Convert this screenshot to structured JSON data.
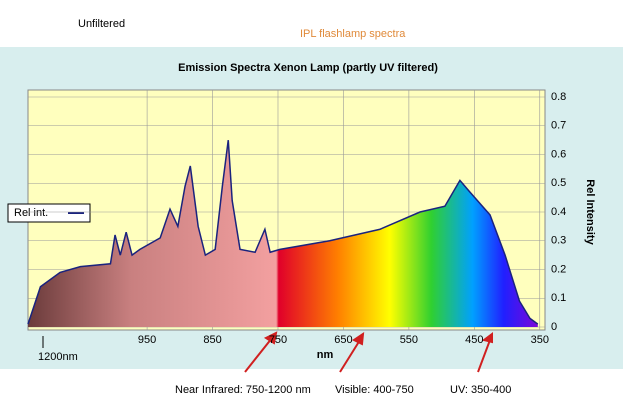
{
  "header": {
    "left": "Unfiltered",
    "right": "IPL flashlamp spectra"
  },
  "chart_data": {
    "type": "area",
    "title": "Emission Spectra Xenon Lamp (partly UV filtered)",
    "x_label": "nm",
    "y_label": "Rel Intensity",
    "x": [
      1132,
      1113,
      1083,
      1052,
      1006,
      999,
      991,
      982,
      973,
      961,
      930,
      915,
      903,
      892,
      884,
      872,
      861,
      846,
      835,
      826,
      820,
      808,
      785,
      770,
      762,
      747,
      671,
      594,
      533,
      495,
      472,
      457,
      426,
      403,
      381,
      365,
      353
    ],
    "series": [
      {
        "name": "Rel int.",
        "color": "#1a237e",
        "values": [
          0.01,
          0.14,
          0.19,
          0.21,
          0.22,
          0.32,
          0.25,
          0.33,
          0.25,
          0.27,
          0.31,
          0.41,
          0.35,
          0.49,
          0.56,
          0.35,
          0.25,
          0.27,
          0.49,
          0.65,
          0.44,
          0.27,
          0.26,
          0.34,
          0.26,
          0.27,
          0.3,
          0.34,
          0.4,
          0.42,
          0.51,
          0.47,
          0.39,
          0.25,
          0.09,
          0.03,
          0.01
        ]
      }
    ],
    "xlim": [
      1132,
      342
    ],
    "xticks": [
      950,
      850,
      750,
      650,
      550,
      450,
      350
    ],
    "ylim": [
      0,
      0.8
    ],
    "yticks": [
      0,
      0.1,
      0.2,
      0.3,
      0.4,
      0.5,
      0.6,
      0.7,
      0.8
    ],
    "grid": true,
    "legend": "left",
    "annotations": [
      "1200nm",
      "Near Infrared: 750-1200 nm",
      "Visible: 400-750",
      "UV: 350-400"
    ]
  }
}
